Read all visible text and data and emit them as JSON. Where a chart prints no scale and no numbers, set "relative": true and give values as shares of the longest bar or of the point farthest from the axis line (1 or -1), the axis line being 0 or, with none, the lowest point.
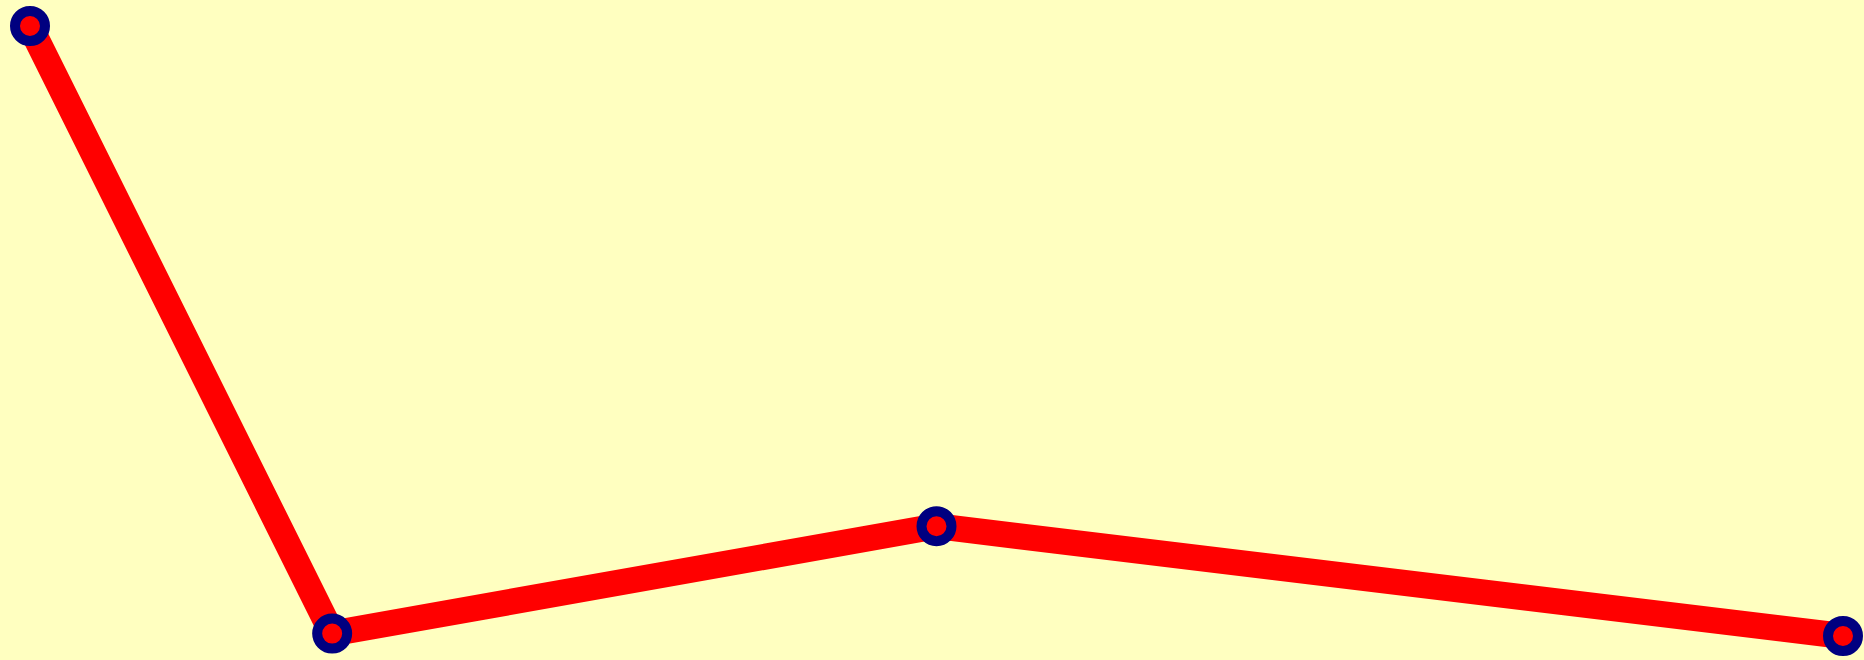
{
  "chart_data": {
    "type": "line",
    "relative": true,
    "categories": [
      null,
      null,
      null,
      null,
      null,
      null,
      null
    ],
    "series": [
      {
        "color": "#ff0000",
        "values": [
          1,
          0.004,
          null,
          0.18,
          null,
          null,
          0
        ]
      }
    ],
    "marker": "circle",
    "grid": false,
    "legend": false,
    "tick_labels": false
  }
}
